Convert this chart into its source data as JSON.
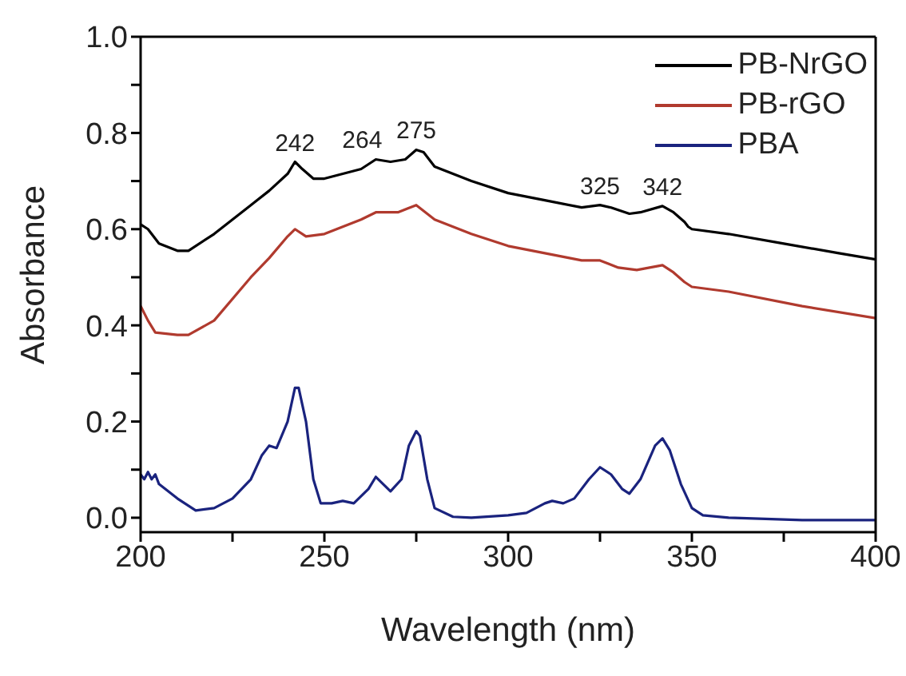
{
  "chart_data": {
    "type": "line",
    "xlabel": "Wavelength (nm)",
    "ylabel": "Absorbance",
    "xlim": [
      200,
      400
    ],
    "ylim": [
      -0.03,
      1.0
    ],
    "xticks": [
      200,
      {
        "value": 225,
        "label": null
      },
      250,
      {
        "value": 275,
        "label": null
      },
      300,
      {
        "value": 325,
        "label": null
      },
      350,
      {
        "value": 375,
        "label": null
      },
      400
    ],
    "yticks": [
      {
        "value": 0,
        "label": "0.0"
      },
      {
        "value": 0.1,
        "label": null
      },
      {
        "value": 0.2,
        "label": "0.2"
      },
      {
        "value": 0.3,
        "label": null
      },
      {
        "value": 0.4,
        "label": "0.4"
      },
      {
        "value": 0.5,
        "label": null
      },
      {
        "value": 0.6,
        "label": "0.6"
      },
      {
        "value": 0.7,
        "label": null
      },
      {
        "value": 0.8,
        "label": "0.8"
      },
      {
        "value": 0.9,
        "label": null
      },
      {
        "value": 1,
        "label": "1.0"
      }
    ],
    "grid": false,
    "legend": "top right",
    "marker": "none",
    "line_style": "solid",
    "series": [
      {
        "name": "PB-NrGO",
        "color": "#000000",
        "x": [
          200,
          202,
          204,
          205,
          210,
          213,
          220,
          230,
          235,
          240,
          242,
          244,
          247,
          250,
          255,
          260,
          264,
          268,
          272,
          275,
          277,
          280,
          290,
          300,
          310,
          320,
          325,
          328,
          333,
          336,
          342,
          345,
          348,
          349,
          350,
          360,
          375,
          390,
          400
        ],
        "values": [
          0.61,
          0.6,
          0.58,
          0.57,
          0.555,
          0.555,
          0.59,
          0.65,
          0.68,
          0.715,
          0.74,
          0.725,
          0.705,
          0.705,
          0.715,
          0.725,
          0.745,
          0.74,
          0.745,
          0.765,
          0.76,
          0.73,
          0.7,
          0.675,
          0.66,
          0.645,
          0.65,
          0.645,
          0.632,
          0.635,
          0.648,
          0.635,
          0.615,
          0.605,
          0.6,
          0.59,
          0.57,
          0.55,
          0.537
        ]
      },
      {
        "name": "PB-rGO",
        "color": "#b03a2e",
        "x": [
          200,
          202,
          204,
          210,
          213,
          220,
          230,
          235,
          240,
          242,
          245,
          250,
          260,
          264,
          270,
          275,
          280,
          290,
          300,
          310,
          320,
          325,
          330,
          335,
          342,
          345,
          348,
          350,
          360,
          380,
          400
        ],
        "values": [
          0.44,
          0.41,
          0.385,
          0.38,
          0.38,
          0.41,
          0.5,
          0.54,
          0.585,
          0.6,
          0.585,
          0.59,
          0.62,
          0.635,
          0.635,
          0.65,
          0.62,
          0.59,
          0.565,
          0.55,
          0.535,
          0.535,
          0.52,
          0.515,
          0.525,
          0.51,
          0.49,
          0.48,
          0.47,
          0.44,
          0.415
        ]
      },
      {
        "name": "PBA",
        "color": "#1a237e",
        "x": [
          200,
          201,
          202,
          203,
          204,
          205,
          210,
          215,
          220,
          225,
          230,
          233,
          235,
          237,
          240,
          242,
          243,
          245,
          247,
          249,
          252,
          255,
          258,
          262,
          264,
          266,
          268,
          271,
          273,
          275,
          276,
          278,
          280,
          285,
          290,
          300,
          305,
          310,
          312,
          315,
          318,
          322,
          325,
          328,
          331,
          333,
          336,
          340,
          342,
          344,
          347,
          350,
          353,
          360,
          380,
          400
        ],
        "values": [
          0.09,
          0.08,
          0.095,
          0.08,
          0.09,
          0.07,
          0.04,
          0.015,
          0.02,
          0.04,
          0.08,
          0.13,
          0.15,
          0.145,
          0.2,
          0.27,
          0.27,
          0.2,
          0.08,
          0.03,
          0.03,
          0.035,
          0.03,
          0.06,
          0.085,
          0.07,
          0.055,
          0.08,
          0.15,
          0.18,
          0.17,
          0.08,
          0.02,
          0.002,
          0.0,
          0.005,
          0.01,
          0.03,
          0.035,
          0.03,
          0.04,
          0.08,
          0.105,
          0.09,
          0.06,
          0.05,
          0.08,
          0.15,
          0.165,
          0.14,
          0.07,
          0.02,
          0.005,
          0.0,
          -0.005,
          -0.005
        ]
      }
    ],
    "annotations": [
      {
        "text": "242",
        "x": 242,
        "y": 0.74
      },
      {
        "text": "264",
        "x": 264,
        "y": 0.745
      },
      {
        "text": "275",
        "x": 275,
        "y": 0.765
      },
      {
        "text": "325",
        "x": 325,
        "y": 0.65
      },
      {
        "text": "342",
        "x": 342,
        "y": 0.648
      }
    ]
  }
}
